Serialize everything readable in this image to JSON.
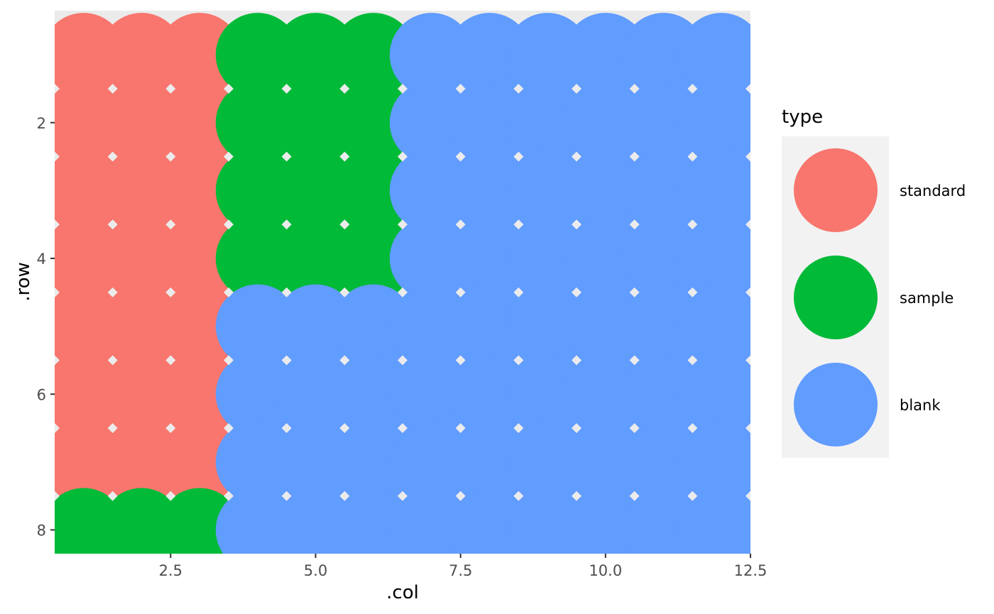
{
  "chart_data": {
    "type": "scatter",
    "xlabel": ".col",
    "ylabel": ".row",
    "xlim": [
      0.5,
      12.5
    ],
    "ylim": [
      0.35,
      8.35
    ],
    "y_reversed": true,
    "x_ticks": [
      "2.5",
      "5.0",
      "7.5",
      "10.0",
      "12.5"
    ],
    "x_tick_values": [
      2.5,
      5.0,
      7.5,
      10.0,
      12.5
    ],
    "y_ticks": [
      "2",
      "4",
      "6",
      "8"
    ],
    "y_tick_values": [
      2,
      4,
      6,
      8
    ],
    "grid": true,
    "legend": {
      "title": "type",
      "position": "right",
      "entries": [
        {
          "label": "standard",
          "color": "#F8766D"
        },
        {
          "label": "sample",
          "color": "#00BA38"
        },
        {
          "label": "blank",
          "color": "#619CFF"
        }
      ]
    },
    "colors": {
      "standard": "#F8766D",
      "sample": "#00BA38",
      "blank": "#619CFF"
    },
    "rows": [
      1,
      2,
      3,
      4,
      5,
      6,
      7,
      8
    ],
    "cols": [
      1,
      2,
      3,
      4,
      5,
      6,
      7,
      8,
      9,
      10,
      11,
      12
    ],
    "grid_types": [
      [
        "standard",
        "standard",
        "standard",
        "sample",
        "sample",
        "sample",
        "blank",
        "blank",
        "blank",
        "blank",
        "blank",
        "blank"
      ],
      [
        "standard",
        "standard",
        "standard",
        "sample",
        "sample",
        "sample",
        "blank",
        "blank",
        "blank",
        "blank",
        "blank",
        "blank"
      ],
      [
        "standard",
        "standard",
        "standard",
        "sample",
        "sample",
        "sample",
        "blank",
        "blank",
        "blank",
        "blank",
        "blank",
        "blank"
      ],
      [
        "standard",
        "standard",
        "standard",
        "sample",
        "sample",
        "sample",
        "blank",
        "blank",
        "blank",
        "blank",
        "blank",
        "blank"
      ],
      [
        "standard",
        "standard",
        "standard",
        "blank",
        "blank",
        "blank",
        "blank",
        "blank",
        "blank",
        "blank",
        "blank",
        "blank"
      ],
      [
        "standard",
        "standard",
        "standard",
        "blank",
        "blank",
        "blank",
        "blank",
        "blank",
        "blank",
        "blank",
        "blank",
        "blank"
      ],
      [
        "standard",
        "standard",
        "standard",
        "blank",
        "blank",
        "blank",
        "blank",
        "blank",
        "blank",
        "blank",
        "blank",
        "blank"
      ],
      [
        "sample",
        "sample",
        "sample",
        "blank",
        "blank",
        "blank",
        "blank",
        "blank",
        "blank",
        "blank",
        "blank",
        "blank"
      ]
    ]
  }
}
